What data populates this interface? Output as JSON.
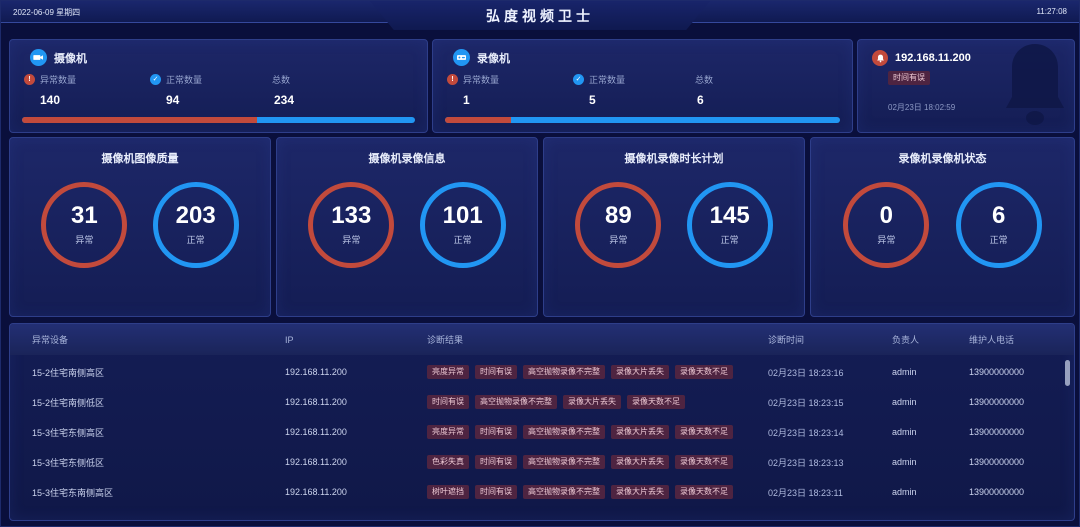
{
  "colors": {
    "abnormal_red": "#c24a3c",
    "normal_blue": "#2196f3",
    "badge_bg": "#4e2441",
    "badge_text": "#eecad5"
  },
  "header": {
    "date": "2022-06-09 星期四",
    "title": "弘度视频卫士",
    "time": "11:27:08"
  },
  "summary_cards": [
    {
      "title": "摄像机",
      "abnormal_label": "异常数量",
      "abnormal": "140",
      "normal_label": "正常数量",
      "normal": "94",
      "total_label": "总数",
      "total": "234",
      "abnormal_ratio": 0.598
    },
    {
      "title": "录像机",
      "abnormal_label": "异常数量",
      "abnormal": "1",
      "normal_label": "正常数量",
      "normal": "5",
      "total_label": "总数",
      "total": "6",
      "abnormal_ratio": 0.167
    }
  ],
  "alert_card": {
    "ip": "192.168.11.200",
    "badge": "时间有误",
    "time": "02月23日 18:02:59"
  },
  "stat_cards": [
    {
      "title": "摄像机图像质量",
      "abnormal": "31",
      "abnormal_label": "异常",
      "normal": "203",
      "normal_label": "正常"
    },
    {
      "title": "摄像机录像信息",
      "abnormal": "133",
      "abnormal_label": "异常",
      "normal": "101",
      "normal_label": "正常"
    },
    {
      "title": "摄像机录像时长计划",
      "abnormal": "89",
      "abnormal_label": "异常",
      "normal": "145",
      "normal_label": "正常"
    },
    {
      "title": "录像机录像机状态",
      "abnormal": "0",
      "abnormal_label": "异常",
      "normal": "6",
      "normal_label": "正常"
    }
  ],
  "table": {
    "headers": [
      "异常设备",
      "IP",
      "诊断结果",
      "诊断时间",
      "负责人",
      "维护人电话"
    ],
    "rows": [
      {
        "device": "15-2住宅南侧高区",
        "ip": "192.168.11.200",
        "results": [
          "亮度异常",
          "时间有误",
          "高空抛物录像不完整",
          "录像大片丢失",
          "录像天数不足"
        ],
        "time": "02月23日 18:23:16",
        "person": "admin",
        "phone": "13900000000"
      },
      {
        "device": "15-2住宅南侧低区",
        "ip": "192.168.11.200",
        "results": [
          "时间有误",
          "高空抛物录像不完整",
          "录像大片丢失",
          "录像天数不足"
        ],
        "time": "02月23日 18:23:15",
        "person": "admin",
        "phone": "13900000000"
      },
      {
        "device": "15-3住宅东侧高区",
        "ip": "192.168.11.200",
        "results": [
          "亮度异常",
          "时间有误",
          "高空抛物录像不完整",
          "录像大片丢失",
          "录像天数不足"
        ],
        "time": "02月23日 18:23:14",
        "person": "admin",
        "phone": "13900000000"
      },
      {
        "device": "15-3住宅东侧低区",
        "ip": "192.168.11.200",
        "results": [
          "色彩失真",
          "时间有误",
          "高空抛物录像不完整",
          "录像大片丢失",
          "录像天数不足"
        ],
        "time": "02月23日 18:23:13",
        "person": "admin",
        "phone": "13900000000"
      },
      {
        "device": "15-3住宅东南侧高区",
        "ip": "192.168.11.200",
        "results": [
          "树叶遮挡",
          "时间有误",
          "高空抛物录像不完整",
          "录像大片丢失",
          "录像天数不足"
        ],
        "time": "02月23日 18:23:11",
        "person": "admin",
        "phone": "13900000000"
      }
    ]
  }
}
